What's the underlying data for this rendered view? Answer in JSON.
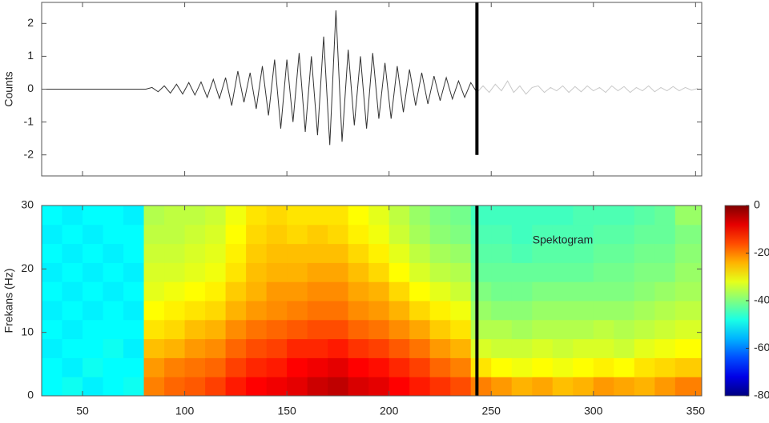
{
  "chart_data": [
    {
      "type": "line",
      "ylabel": "Counts",
      "xlim": [
        30,
        353
      ],
      "ylim": [
        -2.64,
        2.64
      ],
      "xticks": [
        50,
        100,
        150,
        200,
        250,
        300,
        350
      ],
      "yticks": [
        -2,
        -1,
        0,
        1,
        2
      ],
      "vline": 243,
      "vline_ymin": -2,
      "series": [
        {
          "color": "#333333",
          "x": [
            30,
            33,
            36,
            39,
            42,
            45,
            48,
            51,
            54,
            57,
            60,
            63,
            66,
            69,
            72,
            75,
            78,
            81,
            84,
            87,
            90,
            93,
            96,
            99,
            102,
            105,
            108,
            111,
            114,
            117,
            120,
            123,
            126,
            129,
            132,
            135,
            138,
            141,
            144,
            147,
            150,
            153,
            156,
            159,
            162,
            165,
            168,
            171,
            174,
            177,
            180,
            183,
            186,
            189,
            192,
            195,
            198,
            201,
            204,
            207,
            210,
            213,
            216,
            219,
            222,
            225,
            228,
            231,
            234,
            237,
            240,
            243
          ],
          "values": [
            0,
            0,
            0,
            0,
            0,
            0,
            0,
            0,
            0,
            0,
            0,
            0,
            0,
            0,
            0,
            0,
            0,
            0,
            0.05,
            -0.08,
            0.1,
            -0.12,
            0.15,
            -0.15,
            0.2,
            -0.18,
            0.22,
            -0.25,
            0.3,
            -0.28,
            0.35,
            -0.5,
            0.55,
            -0.4,
            0.5,
            -0.6,
            0.7,
            -0.8,
            0.9,
            -1.2,
            0.9,
            -1.0,
            1.1,
            -1.3,
            1.0,
            -1.4,
            1.6,
            -1.7,
            2.4,
            -1.6,
            1.2,
            -1.1,
            1.0,
            -1.2,
            1.1,
            -0.9,
            0.8,
            -0.9,
            0.7,
            -0.7,
            0.6,
            -0.5,
            0.5,
            -0.45,
            0.4,
            -0.35,
            0.35,
            -0.3,
            0.25,
            -0.25,
            0.2,
            -0.1
          ]
        },
        {
          "color": "#c8c8c8",
          "x": [
            243,
            246,
            249,
            252,
            255,
            258,
            261,
            264,
            267,
            270,
            273,
            276,
            279,
            282,
            285,
            288,
            291,
            294,
            297,
            300,
            303,
            306,
            309,
            312,
            315,
            318,
            321,
            324,
            327,
            330,
            333,
            336,
            339,
            342,
            345,
            348,
            351
          ],
          "values": [
            -0.1,
            0.1,
            -0.1,
            0.15,
            -0.05,
            0.25,
            -0.1,
            0.1,
            -0.15,
            0.05,
            0.1,
            -0.1,
            0.05,
            -0.05,
            0.1,
            -0.1,
            0.08,
            -0.08,
            0.1,
            -0.05,
            0.05,
            -0.1,
            0.1,
            -0.05,
            0.08,
            -0.1,
            0.05,
            -0.05,
            0.1,
            -0.08,
            0.05,
            -0.05,
            0.08,
            -0.05,
            0.05,
            -0.03,
            0.02
          ]
        }
      ]
    },
    {
      "type": "heatmap",
      "ylabel": "Frekans (Hz)",
      "annotation": "Spektogram",
      "annotation_x": 285,
      "annotation_y": 24.5,
      "xlim": [
        30,
        353
      ],
      "ylim": [
        0,
        30
      ],
      "xticks": [
        50,
        100,
        150,
        200,
        250,
        300,
        350
      ],
      "yticks": [
        0,
        10,
        20,
        30
      ],
      "vline": 243,
      "colormap": "jet",
      "clim": [
        -80,
        0
      ],
      "cticks": [
        0,
        -20,
        -40,
        -60,
        -80
      ],
      "x_edges": [
        30,
        40,
        50,
        60,
        70,
        80,
        90,
        100,
        110,
        120,
        130,
        140,
        150,
        160,
        170,
        180,
        190,
        200,
        210,
        220,
        230,
        240,
        250,
        260,
        270,
        280,
        290,
        300,
        310,
        320,
        330,
        340,
        353
      ],
      "y_edges": [
        0,
        3,
        6,
        9,
        12,
        15,
        18,
        21,
        24,
        27,
        30
      ],
      "z": [
        [
          -50,
          -49,
          -51,
          -50,
          -49,
          -20,
          -18,
          -17,
          -15,
          -12,
          -10,
          -9,
          -8,
          -6,
          -5,
          -7,
          -8,
          -10,
          -12,
          -14,
          -16,
          -20,
          -22,
          -24,
          -23,
          -25,
          -24,
          -22,
          -23,
          -24,
          -22,
          -20
        ],
        [
          -50,
          -51,
          -49,
          -50,
          -50,
          -22,
          -20,
          -19,
          -18,
          -15,
          -13,
          -12,
          -10,
          -9,
          -8,
          -10,
          -11,
          -13,
          -15,
          -18,
          -20,
          -28,
          -30,
          -31,
          -30,
          -31,
          -30,
          -29,
          -30,
          -28,
          -27,
          -26
        ],
        [
          -51,
          -50,
          -50,
          -49,
          -51,
          -25,
          -24,
          -22,
          -21,
          -18,
          -16,
          -15,
          -13,
          -13,
          -12,
          -14,
          -15,
          -17,
          -19,
          -22,
          -24,
          -33,
          -34,
          -34,
          -33,
          -34,
          -33,
          -33,
          -34,
          -32,
          -31,
          -30
        ],
        [
          -50,
          -51,
          -50,
          -50,
          -50,
          -28,
          -27,
          -25,
          -24,
          -21,
          -19,
          -18,
          -17,
          -16,
          -16,
          -18,
          -19,
          -21,
          -23,
          -26,
          -28,
          -36,
          -36,
          -37,
          -36,
          -36,
          -36,
          -35,
          -36,
          -35,
          -34,
          -33
        ],
        [
          -51,
          -50,
          -51,
          -50,
          -51,
          -30,
          -29,
          -28,
          -27,
          -24,
          -22,
          -21,
          -20,
          -19,
          -19,
          -21,
          -22,
          -24,
          -27,
          -29,
          -31,
          -38,
          -39,
          -39,
          -38,
          -38,
          -38,
          -38,
          -38,
          -37,
          -36,
          -35
        ],
        [
          -50,
          -51,
          -50,
          -51,
          -50,
          -32,
          -31,
          -30,
          -29,
          -26,
          -24,
          -22,
          -22,
          -21,
          -21,
          -23,
          -24,
          -27,
          -30,
          -32,
          -34,
          -40,
          -41,
          -41,
          -40,
          -40,
          -40,
          -40,
          -40,
          -39,
          -38,
          -37
        ],
        [
          -51,
          -50,
          -51,
          -50,
          -51,
          -33,
          -33,
          -32,
          -31,
          -28,
          -25,
          -24,
          -24,
          -23,
          -23,
          -25,
          -27,
          -30,
          -33,
          -35,
          -36,
          -42,
          -42,
          -42,
          -42,
          -42,
          -42,
          -41,
          -41,
          -40,
          -40,
          -38
        ],
        [
          -50,
          -51,
          -50,
          -51,
          -50,
          -34,
          -34,
          -33,
          -32,
          -29,
          -26,
          -25,
          -25,
          -25,
          -25,
          -27,
          -29,
          -32,
          -35,
          -37,
          -38,
          -43,
          -43,
          -44,
          -43,
          -43,
          -43,
          -42,
          -42,
          -41,
          -41,
          -39
        ],
        [
          -51,
          -50,
          -51,
          -50,
          -50,
          -35,
          -35,
          -34,
          -33,
          -30,
          -27,
          -26,
          -27,
          -26,
          -27,
          -29,
          -31,
          -34,
          -37,
          -39,
          -40,
          -44,
          -44,
          -45,
          -44,
          -44,
          -44,
          -43,
          -43,
          -42,
          -42,
          -40
        ],
        [
          -50,
          -51,
          -50,
          -50,
          -51,
          -36,
          -35,
          -35,
          -34,
          -31,
          -28,
          -27,
          -28,
          -28,
          -28,
          -30,
          -32,
          -35,
          -38,
          -40,
          -41,
          -45,
          -45,
          -45,
          -45,
          -45,
          -44,
          -44,
          -44,
          -43,
          -42,
          -38
        ]
      ]
    }
  ]
}
